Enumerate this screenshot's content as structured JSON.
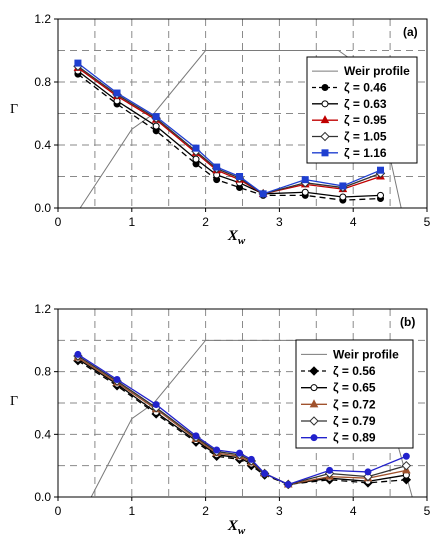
{
  "chart_data": [
    {
      "type": "line",
      "panel_label": "(a)",
      "xlabel": "X",
      "xlabel_sub": "w",
      "ylabel": "Γ",
      "xlim": [
        0,
        5
      ],
      "ylim": [
        0,
        1.2
      ],
      "xticks": [
        "0",
        "1",
        "2",
        "3",
        "4",
        "5"
      ],
      "yticks": [
        "0.0",
        "0.4",
        "0.8",
        "1.2"
      ],
      "grid": "dashed",
      "legend_position": "top-right",
      "weir_profile": {
        "name": "Weir profile",
        "x": [
          0.3,
          1.0,
          1.3,
          2.0,
          2.5,
          3.0,
          3.8,
          4.25,
          4.65
        ],
        "y": [
          0.0,
          0.5,
          0.6,
          1.0,
          1.0,
          1.0,
          1.0,
          0.85,
          0.0
        ]
      },
      "x": [
        0.27,
        0.8,
        1.33,
        1.87,
        2.15,
        2.46,
        2.78,
        3.35,
        3.86,
        4.37
      ],
      "series": [
        {
          "name": "ζ = 0.46",
          "color": "#000000",
          "dash": "6,4",
          "marker": "filled-circle",
          "values": [
            0.85,
            0.66,
            0.49,
            0.28,
            0.18,
            0.13,
            0.08,
            0.08,
            0.05,
            0.06
          ]
        },
        {
          "name": "ζ = 0.63",
          "color": "#000000",
          "dash": "",
          "marker": "open-circle",
          "values": [
            0.87,
            0.68,
            0.52,
            0.31,
            0.21,
            0.16,
            0.09,
            0.1,
            0.07,
            0.08
          ]
        },
        {
          "name": "ζ = 0.95",
          "color": "#c00000",
          "dash": "",
          "marker": "triangle",
          "values": [
            0.89,
            0.71,
            0.56,
            0.35,
            0.24,
            0.18,
            0.09,
            0.15,
            0.12,
            0.2
          ]
        },
        {
          "name": "ζ = 1.05",
          "color": "#333333",
          "dash": "",
          "marker": "open-diamond",
          "values": [
            0.9,
            0.72,
            0.57,
            0.36,
            0.25,
            0.19,
            0.09,
            0.16,
            0.13,
            0.22
          ]
        },
        {
          "name": "ζ = 1.16",
          "color": "#1f3fd0",
          "dash": "",
          "marker": "filled-square",
          "values": [
            0.92,
            0.73,
            0.58,
            0.38,
            0.26,
            0.2,
            0.09,
            0.18,
            0.14,
            0.24
          ]
        }
      ]
    },
    {
      "type": "line",
      "panel_label": "(b)",
      "xlabel": "X",
      "xlabel_sub": "w",
      "ylabel": "Γ",
      "xlim": [
        0,
        5
      ],
      "ylim": [
        0,
        1.2
      ],
      "xticks": [
        "0",
        "1",
        "2",
        "3",
        "4",
        "5"
      ],
      "yticks": [
        "0.0",
        "0.4",
        "0.8",
        "1.2"
      ],
      "grid": "dashed",
      "legend_position": "top-right",
      "weir_profile": {
        "name": "Weir profile",
        "x": [
          0.45,
          1.0,
          1.3,
          2.0,
          2.5,
          3.0,
          3.8,
          4.3,
          4.8
        ],
        "y": [
          0.0,
          0.5,
          0.6,
          1.0,
          1.0,
          1.0,
          1.0,
          0.85,
          0.0
        ]
      },
      "x": [
        0.27,
        0.8,
        1.33,
        1.87,
        2.15,
        2.46,
        2.62,
        2.8,
        3.12,
        3.68,
        4.2,
        4.72
      ],
      "series": [
        {
          "name": "ζ = 0.56",
          "color": "#000000",
          "dash": "6,4",
          "marker": "filled-diamond",
          "values": [
            0.87,
            0.71,
            0.53,
            0.35,
            0.26,
            0.24,
            0.2,
            0.14,
            0.08,
            0.11,
            0.09,
            0.11
          ]
        },
        {
          "name": "ζ = 0.65",
          "color": "#000000",
          "dash": "",
          "marker": "open-circle",
          "values": [
            0.88,
            0.72,
            0.54,
            0.36,
            0.27,
            0.25,
            0.21,
            0.15,
            0.08,
            0.12,
            0.1,
            0.14
          ]
        },
        {
          "name": "ζ = 0.72",
          "color": "#a0522d",
          "dash": "",
          "marker": "triangle",
          "values": [
            0.89,
            0.73,
            0.56,
            0.37,
            0.28,
            0.26,
            0.22,
            0.15,
            0.08,
            0.13,
            0.12,
            0.17
          ]
        },
        {
          "name": "ζ = 0.79",
          "color": "#333333",
          "dash": "",
          "marker": "open-diamond",
          "values": [
            0.9,
            0.74,
            0.57,
            0.38,
            0.29,
            0.27,
            0.23,
            0.15,
            0.08,
            0.15,
            0.13,
            0.2
          ]
        },
        {
          "name": "ζ = 0.89",
          "color": "#2222cc",
          "dash": "",
          "marker": "filled-circle",
          "values": [
            0.91,
            0.75,
            0.59,
            0.39,
            0.3,
            0.28,
            0.24,
            0.15,
            0.08,
            0.17,
            0.16,
            0.26
          ]
        }
      ]
    }
  ]
}
